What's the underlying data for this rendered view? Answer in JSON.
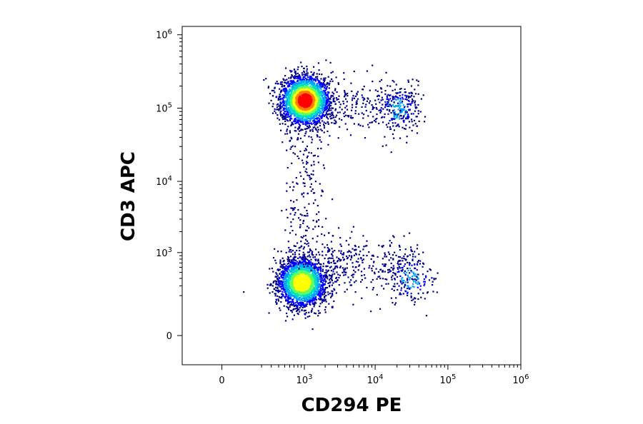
{
  "chart_data": {
    "type": "scatter",
    "title": "",
    "xlabel": "CD294 PE",
    "ylabel": "CD3 APC",
    "x_scale": "biexponential",
    "y_scale": "biexponential",
    "xlim": [
      -200,
      1000000
    ],
    "ylim": [
      -120,
      1300000
    ],
    "x_ticks": [
      {
        "value": 0,
        "base": "0",
        "exp": ""
      },
      {
        "value": 1000,
        "base": "10",
        "exp": "3"
      },
      {
        "value": 10000,
        "base": "10",
        "exp": "4"
      },
      {
        "value": 100000,
        "base": "10",
        "exp": "5"
      },
      {
        "value": 1000000,
        "base": "10",
        "exp": "6"
      }
    ],
    "y_ticks": [
      {
        "value": 0,
        "base": "0",
        "exp": ""
      },
      {
        "value": 1000,
        "base": "10",
        "exp": "3"
      },
      {
        "value": 10000,
        "base": "10",
        "exp": "4"
      },
      {
        "value": 100000,
        "base": "10",
        "exp": "5"
      },
      {
        "value": 1000000,
        "base": "10",
        "exp": "6"
      }
    ],
    "colormap": [
      "#00008b",
      "#0000ff",
      "#00a0ff",
      "#00e0c0",
      "#60ff60",
      "#ffff00",
      "#ff8000",
      "#ff0000"
    ],
    "populations": [
      {
        "x": 1000,
        "y": 130000,
        "n": 2600
      },
      {
        "x": 900,
        "y": 350,
        "n": 2200
      },
      {
        "x": 30000,
        "y": 420,
        "n": 150
      },
      {
        "x": 20000,
        "y": 100000,
        "n": 180
      },
      {
        "x": 1000,
        "y": 5000,
        "n": 220
      },
      {
        "x": 5000,
        "y": 650,
        "n": 320
      },
      {
        "x": 5000,
        "y": 110000,
        "n": 260
      }
    ]
  }
}
